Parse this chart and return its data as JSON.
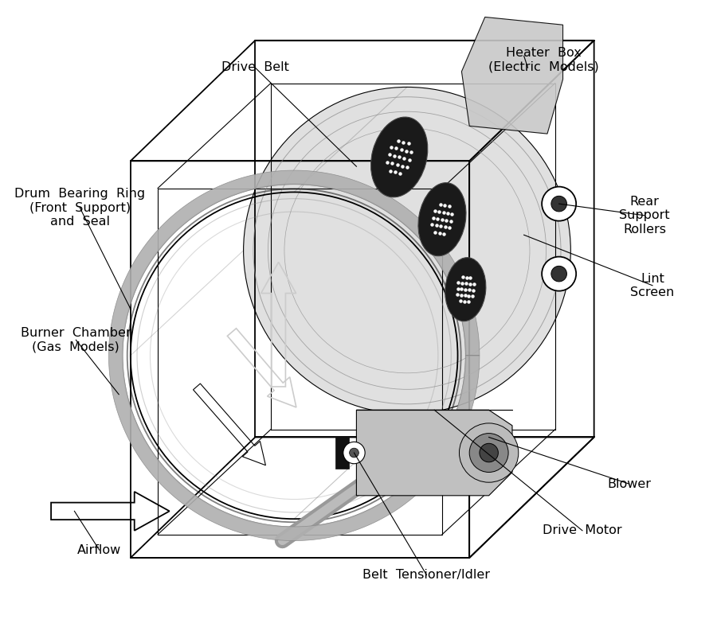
{
  "bg_color": "#ffffff",
  "line_color": "#000000",
  "gray_belt": "#aaaaaa",
  "light_gray": "#d0d0d0",
  "mid_gray": "#b0b0b0",
  "dark_gray": "#555555",
  "font_size": 11.5,
  "labels": {
    "drive_belt": "Drive  Belt",
    "heater_box": "Heater  Box\n(Electric  Models)",
    "drum_bearing": "Drum  Bearing  Ring\n(Front  Support)\nand  Seal",
    "burner_chamber": "Burner  Chamber\n(Gas  Models)",
    "lint_screen": "Lint\nScreen",
    "rear_support": "Rear\nSupport\nRollers",
    "airflow": "Airflow",
    "blower": "Blower",
    "drive_motor": "Drive  Motor",
    "belt_tensioner": "Belt  Tensioner/Idler"
  }
}
